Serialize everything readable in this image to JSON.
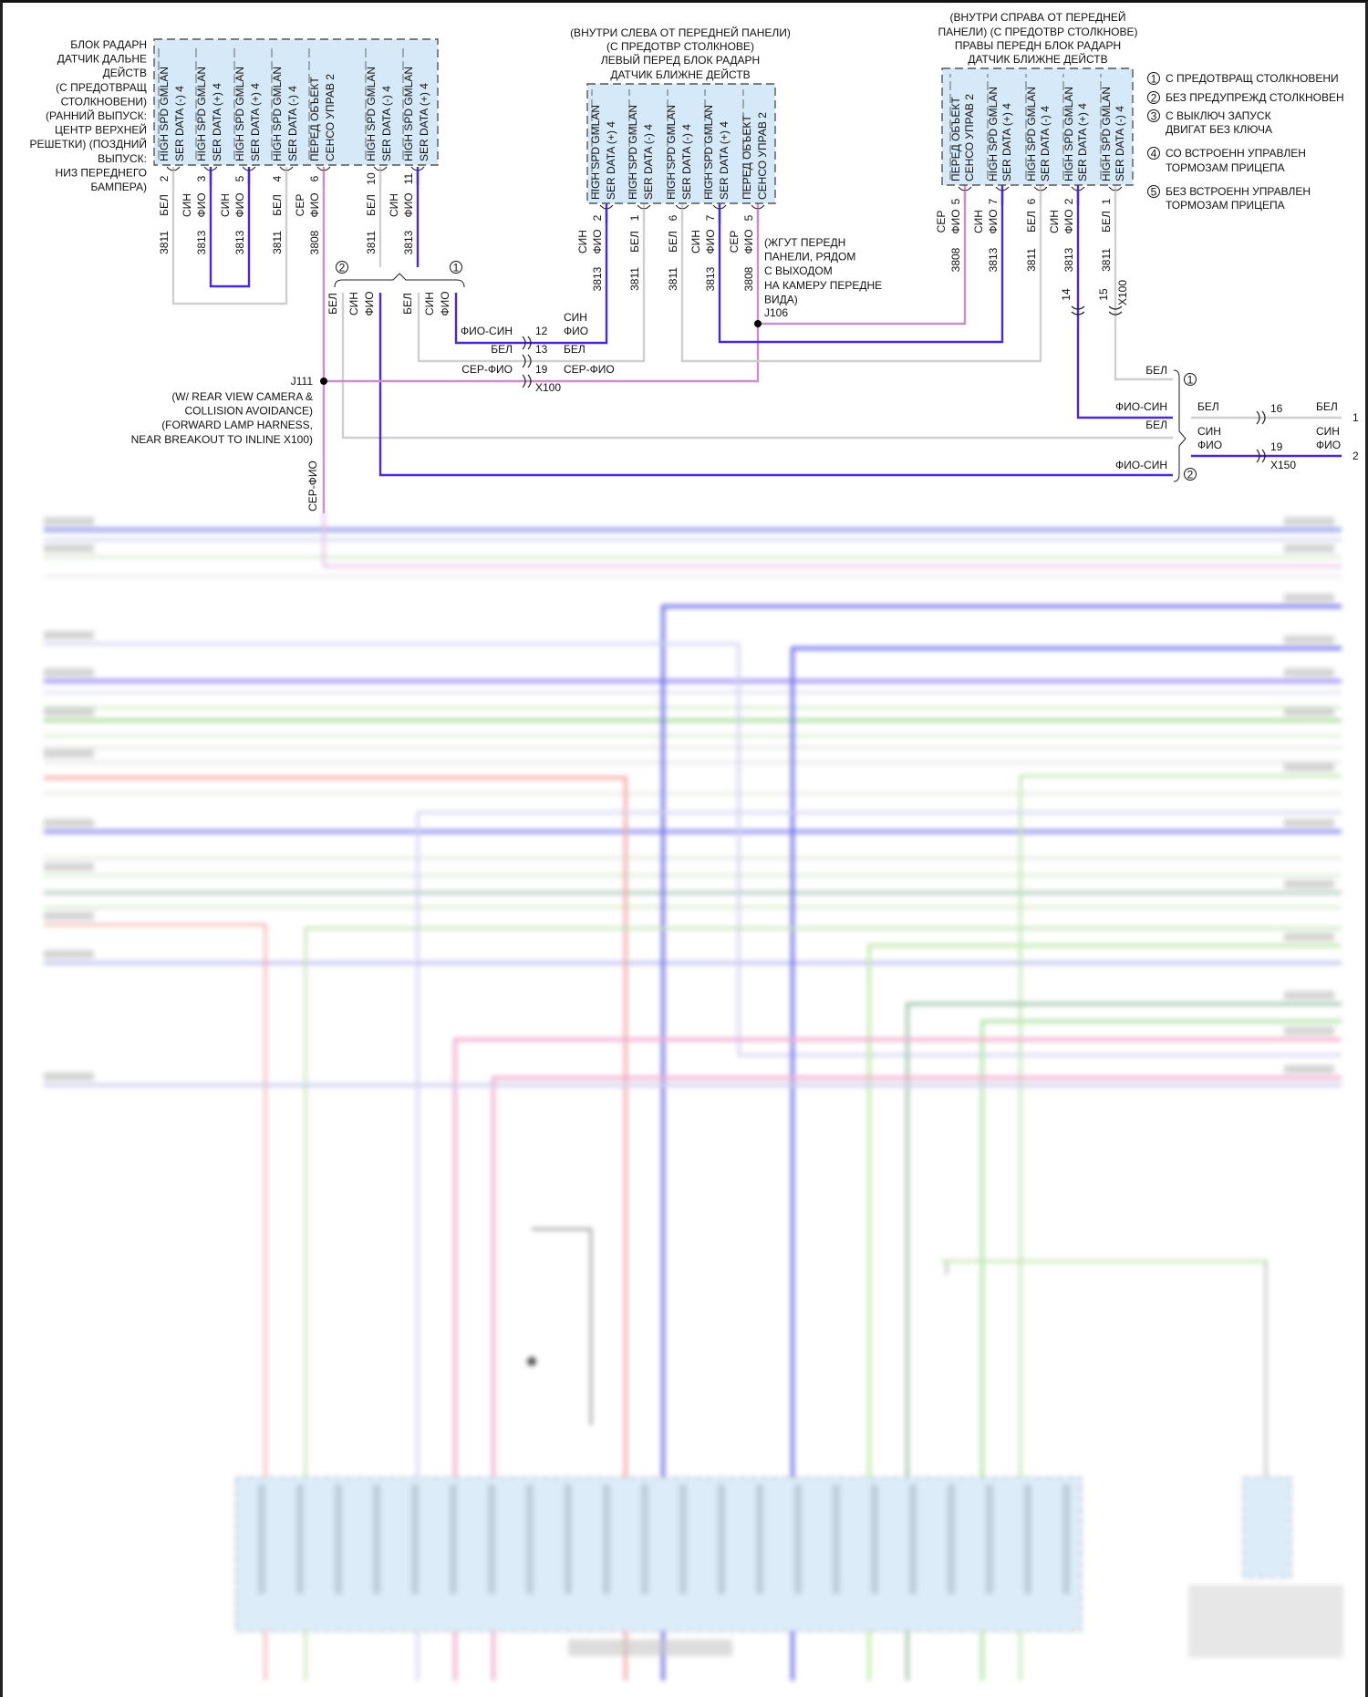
{
  "colors": {
    "wire_white": "#cfcfcf",
    "wire_purple": "#4b27d6",
    "wire_gray_violet": "#c98fc9",
    "connector_fill": "#d6e9f8",
    "connector_border": "#555555"
  },
  "connectors": {
    "long_range_radar": {
      "title": [
        "БЛОК РАДАРН",
        "ДАТЧИК ДАЛЬНЕ",
        "ДЕЙСТВ",
        "(С ПРЕДОТВРАЩ",
        "СТОЛКНОВЕНИ)",
        "(РАННИЙ ВЫПУСК:",
        "ЦЕНТР ВЕРХНЕЙ",
        "РЕШЕТКИ) (ПОЗДНИЙ",
        "ВЫПУСК:",
        "НИЗ ПЕРЕДНЕГО",
        "БАМПЕРА)"
      ],
      "pins": [
        {
          "pin": "2",
          "function": [
            "HIGH SPD GMLAN",
            "SER DATA (-) 4"
          ],
          "color": [
            "БЕЛ"
          ],
          "circuit": "3811"
        },
        {
          "pin": "3",
          "function": [
            "HIGH SPD GMLAN",
            "SER DATA (+) 4"
          ],
          "color": [
            "СИН",
            "ФИО"
          ],
          "circuit": "3813"
        },
        {
          "pin": "5",
          "function": [
            "HIGH SPD GMLAN",
            "SER DATA (+) 4"
          ],
          "color": [
            "СИН",
            "ФИО"
          ],
          "circuit": "3813"
        },
        {
          "pin": "4",
          "function": [
            "HIGH SPD GMLAN",
            "SER DATA (-) 4"
          ],
          "color": [
            "БЕЛ"
          ],
          "circuit": "3811"
        },
        {
          "pin": "6",
          "function": [
            "ПЕРЕД ОБЪЕКТ",
            "СЕНСО УПРАВ 2"
          ],
          "color": [
            "СЕР",
            "ФИО"
          ],
          "circuit": "3808"
        },
        {
          "pin": "10",
          "function": [
            "HIGH SPD GMLAN",
            "SER DATA (-) 4"
          ],
          "color": [
            "БЕЛ"
          ],
          "circuit": "3811"
        },
        {
          "pin": "11",
          "function": [
            "HIGH SPD GMLAN",
            "SER DATA (+) 4"
          ],
          "color": [
            "СИН",
            "ФИО"
          ],
          "circuit": "3813"
        }
      ]
    },
    "left_short_range_radar": {
      "title": [
        "(ВНУТРИ СЛЕВА ОТ ПЕРЕДНЕЙ ПАНЕЛИ)",
        "(С ПРЕДОТВР СТОЛКНОВЕ)",
        "ЛЕВЫЙ ПЕРЕД БЛОК РАДАРН",
        "ДАТЧИК БЛИЖНЕ ДЕЙСТВ"
      ],
      "pins": [
        {
          "pin": "2",
          "function": [
            "HIGH SPD GMLAN",
            "SER DATA (+) 4"
          ],
          "color": [
            "СИН",
            "ФИО"
          ],
          "circuit": "3813"
        },
        {
          "pin": "1",
          "function": [
            "HIGH SPD GMLAN",
            "SER DATA (-) 4"
          ],
          "color": [
            "БЕЛ"
          ],
          "circuit": "3811"
        },
        {
          "pin": "6",
          "function": [
            "HIGH SPD GMLAN",
            "SER DATA (-) 4"
          ],
          "color": [
            "БЕЛ"
          ],
          "circuit": "3811"
        },
        {
          "pin": "7",
          "function": [
            "HIGH SPD GMLAN",
            "SER DATA (+) 4"
          ],
          "color": [
            "СИН",
            "ФИО"
          ],
          "circuit": "3813"
        },
        {
          "pin": "5",
          "function": [
            "ПЕРЕД ОБЪЕКТ",
            "СЕНСО УПРАВ 2"
          ],
          "color": [
            "СЕР",
            "ФИО"
          ],
          "circuit": "3808"
        }
      ]
    },
    "right_short_range_radar": {
      "title": [
        "(ВНУТРИ СПРАВА ОТ ПЕРЕДНЕЙ",
        "ПАНЕЛИ) (С ПРЕДОТВР СТОЛКНОВЕ)",
        "ПРАВЫ ПЕРЕДН БЛОК РАДАРН",
        "ДАТЧИК БЛИЖНЕ ДЕЙСТВ"
      ],
      "pins": [
        {
          "pin": "5",
          "function": [
            "ПЕРЕД ОБЪЕКТ",
            "СЕНСО УПРАВ 2"
          ],
          "color": [
            "СЕР",
            "ФИО"
          ],
          "circuit": "3808"
        },
        {
          "pin": "7",
          "function": [
            "HIGH SPD GMLAN",
            "SER DATA (+) 4"
          ],
          "color": [
            "СИН",
            "ФИО"
          ],
          "circuit": "3813"
        },
        {
          "pin": "6",
          "function": [
            "HIGH SPD GMLAN",
            "SER DATA (-) 4"
          ],
          "color": [
            "БЕЛ"
          ],
          "circuit": "3811"
        },
        {
          "pin": "2",
          "function": [
            "HIGH SPD GMLAN",
            "SER DATA (+) 4"
          ],
          "color": [
            "СИН",
            "ФИО"
          ],
          "circuit": "3813"
        },
        {
          "pin": "1",
          "function": [
            "HIGH SPD GMLAN",
            "SER DATA (-) 4"
          ],
          "color": [
            "БЕЛ"
          ],
          "circuit": "3811"
        }
      ]
    }
  },
  "legend": [
    {
      "n": "1",
      "lines": [
        "С ПРЕДОТВРАЩ СТОЛКНОВЕНИ"
      ]
    },
    {
      "n": "2",
      "lines": [
        "БЕЗ ПРЕДУПРЕЖД СТОЛКНОВЕН"
      ]
    },
    {
      "n": "3",
      "lines": [
        "С ВЫКЛЮЧ ЗАПУСК",
        "ДВИГАТ БЕЗ КЛЮЧА"
      ]
    },
    {
      "n": "4",
      "lines": [
        "СО ВСТРОЕНН УПРАВЛЕН",
        "ТОРМОЗАМ ПРИЦЕПА"
      ]
    },
    {
      "n": "5",
      "lines": [
        "БЕЗ ВСТРОЕНН УПРАВЛЕН",
        "ТОРМОЗАМ ПРИЦЕПА"
      ]
    }
  ],
  "splices": {
    "j111": {
      "name": "J111",
      "lines": [
        "(W/ REAR VIEW CAMERA &",
        "COLLISION AVOIDANCE)",
        "(FORWARD LAMP HARNESS,",
        "NEAR BREAKOUT TO INLINE X100)"
      ]
    },
    "j106": {
      "name": "J106",
      "lines": [
        "(ЖГУТ ПЕРЕДН",
        "ПАНЕЛИ, РЯДОМ",
        "С ВЫХОДОМ",
        "НА КАМЕРУ ПЕРЕДНЕ",
        "ВИДА)"
      ]
    }
  },
  "left_branch": {
    "options": [
      "2",
      "1"
    ],
    "labels": [
      [
        "БЕЛ"
      ],
      [
        "СИН",
        "ФИО"
      ],
      [
        "БЕЛ"
      ],
      [
        "СИН",
        "ФИО"
      ]
    ]
  },
  "x100_left": {
    "name": "X100",
    "rows": [
      {
        "left": "ФИО-СИН",
        "pin": "12",
        "right": [
          "СИН",
          "ФИО"
        ]
      },
      {
        "left": "БЕЛ",
        "pin": "13",
        "right": [
          "БЕЛ"
        ]
      },
      {
        "left": "СЕР-ФИО",
        "pin": "19",
        "right": [
          "СЕР-ФИО"
        ]
      }
    ]
  },
  "x100_right": {
    "name": "X100",
    "pins": [
      "14",
      "15"
    ]
  },
  "right_branch": {
    "options": [
      "1",
      "2"
    ],
    "labels": [
      "БЕЛ",
      "ФИО-СИН",
      "БЕЛ",
      "ФИО-СИН"
    ]
  },
  "x150": {
    "name": "X150",
    "rows": [
      {
        "left": [
          "БЕЛ"
        ],
        "pin": "16",
        "right": [
          "БЕЛ"
        ],
        "end": "1"
      },
      {
        "left": [
          "СИН",
          "ФИО"
        ],
        "pin": "19",
        "right": [
          "СИН",
          "ФИО"
        ],
        "end": "2"
      }
    ]
  },
  "down_wire_label": "СЕР-ФИО"
}
